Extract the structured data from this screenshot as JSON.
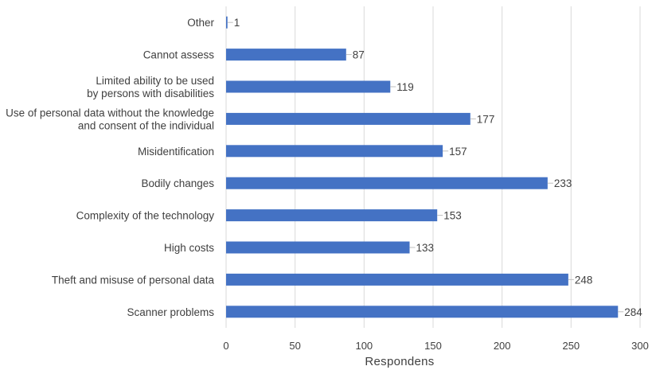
{
  "chart_data": {
    "type": "bar",
    "orientation": "horizontal",
    "categories": [
      [
        "Other"
      ],
      [
        "Cannot assess"
      ],
      [
        "Limited ability to be used",
        "by persons with disabilities"
      ],
      [
        "Use of personal data without the knowledge",
        "and consent of the individual"
      ],
      [
        "Misidentification"
      ],
      [
        "Bodily changes"
      ],
      [
        "Complexity of the technology"
      ],
      [
        "High costs"
      ],
      [
        "Theft and misuse of personal data"
      ],
      [
        "Scanner problems"
      ]
    ],
    "values": [
      1,
      87,
      119,
      177,
      157,
      233,
      153,
      133,
      248,
      284
    ],
    "data_labels": [
      "1",
      "87",
      "119",
      "177",
      "157",
      "233",
      "153",
      "133",
      "248",
      "284"
    ],
    "xlabel": "Respondens",
    "ylabel": "",
    "title": "",
    "xlim": [
      0,
      300
    ],
    "xticks": [
      0,
      50,
      100,
      150,
      200,
      250,
      300
    ],
    "xtick_labels": [
      "0",
      "50",
      "100",
      "150",
      "200",
      "250",
      "300"
    ],
    "grid": "vertical",
    "legend": "none",
    "bar_color": "#4472C4",
    "gridline_color": "#D9D9D9"
  }
}
